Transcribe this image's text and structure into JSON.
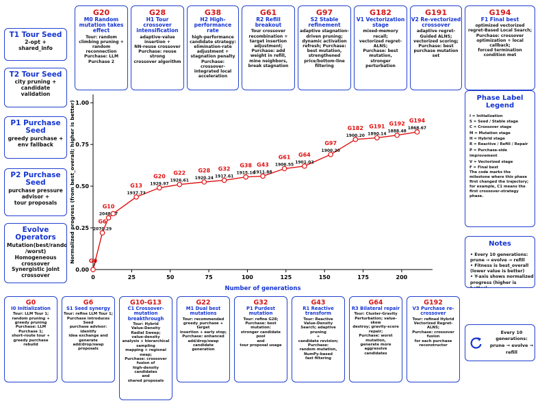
{
  "top_cards": [
    {
      "code": "G20",
      "title": "M0 Random mutation takes effect",
      "body": "Tour: random climbing pruning + random reconnection\nPurchase: LLM Purchase 2"
    },
    {
      "code": "G28",
      "title": "H1 Tour crossover intensification",
      "body": "adaptive-value insertion +\nNN-reuse crossover\nPurchase: reuse strong\ncrossover algorithm"
    },
    {
      "code": "G38",
      "title": "H2 High-performance rate",
      "body": "high-performance candidate strategy:\nelimination-rate adjustment + stagnation penalty\nPurchase: crossover-integrated local acceleration"
    },
    {
      "code": "G61",
      "title": "R2 Refill breakout",
      "body": "Tour crossover recombination + target insertion adjustment;\nPurchase: add weight in refill,\nmine neighbors, break stagnation"
    },
    {
      "code": "G97",
      "title": "S2 Stable refinement",
      "body": "adaptive stagnation-driven pruning; dynamic activation refresh; Purchase: best mutation, strengthened price/bottom-line filtering"
    },
    {
      "code": "G182",
      "title": "V1 Vectorization stage",
      "body": "mixed-memory recall;\nvectorized regret-ALNS;\nPurchase: best mutation,\nstronger perturbation"
    },
    {
      "code": "G191",
      "title": "V2 Re-vectorized crossover",
      "body": "adaptive regret-Guided ALNS;\nvectorized scoring;\nPurchase: best purchase mutation set"
    },
    {
      "code": "G194",
      "title": "F1 Final best",
      "body": "optimized vectorized regret-Based Local Search;\nPurchase: crossover optimization + local callback;\nforced termination condition met"
    }
  ],
  "left_cards": [
    {
      "title": "T1 Tour Seed",
      "body": "2-opt + shared_info"
    },
    {
      "title": "T2 Tour Seed",
      "body": "city pruning +\ncandidate validation"
    },
    {
      "title": "P1 Purchase Seed",
      "body": "greedy purchase +\nenv fallback"
    },
    {
      "title": "P2 Purchase Seed",
      "body": "purchase pressure advisor +\ntour proposals"
    },
    {
      "title": "Evolve Operators",
      "body": "Mutation(best/random\n/worst)\nHomogeneous crossover\nSynergistic joint crossover"
    }
  ],
  "bottom_cards": [
    {
      "code": "G0",
      "title": "I0 Initialization",
      "body": "Tour: LLM Tour 1;\nrandom pruning +\ngreedy pruning\nPurchase: LLM Purchase 1;\nshort-route tour +\ngreedy purchase rebuild"
    },
    {
      "code": "G6",
      "title": "S1 Seed synergy",
      "body": "Tour: refine LLM Tour 1;\nPurchase introduces\nSeed\npurchase advisor:\nidentify\nidea exchange and\ngenerate\nadd/drop/swap proposals"
    },
    {
      "code": "G10-G13",
      "title": "C1 Crossover-mutation breakthrough",
      "body": "Tour: Hybrid\nValue-Density\nRadial Sweep;\nvalue-density\nanalysis + hierarchical\nsampling\nmapping + regional\nswap;\nPurchase: crossover\nfusion of\nhigh-density candidates\nand\nshared proposals"
    },
    {
      "code": "G22",
      "title": "M1 Dual best mutations",
      "body": "Tour: recommended\ngreedy_purchase +\ntarget\ninsertion + early stop;\nPurchase: enhanced\nadd/drop/swap candidate\ngeneration"
    },
    {
      "code": "G32",
      "title": "P1 Purdest mutation",
      "body": "Tour: refine G28;\nPurchase: best mutation:\nstronger candidate pool\nand\ntour proposal usage"
    },
    {
      "code": "G43",
      "title": "R1 Reactive transform",
      "body": "Tour: Reactive\nValue-Density\nSearch; adaptive pruning\n+\ncandidate revision;\nPurchase:\nrandom mutation,\nNumPy-based\nfast filtering"
    },
    {
      "code": "G64",
      "title": "R3 Bilateral repair",
      "body": "Tour: Cluster-Gravity\nPerturbation; value-skew\ndestroy; gravity-score\nrepair;\nPurchase: worst\nmutation,\ngenerate more\naggressive\ncandidates"
    },
    {
      "code": "G192",
      "title": "V3 Purchase re-crossover",
      "body": "Tour: refined Hybrid\nVectorized Regret-ALNS;\nPurchase: crossover\nfusion\nfor each purchase\nreconstructor"
    }
  ],
  "legend": {
    "title": "Phase Label Legend",
    "lines": [
      "I = Initialization",
      "S = Seed / Stable stage",
      "C = Crossover stage",
      "M = Mutation stage",
      "H = Hybrid stage",
      "R = Reactive / Refill / Repair",
      "P = Purchase-side improvement",
      "V = Vectorized stage",
      "F = Final best",
      "The code marks the milestone where this phase first changed the trajectory; for example, C1 means the first crossover-strategy phase."
    ]
  },
  "notes": {
    "title": "Notes",
    "lines": [
      "• Every 10 generations: prune → evolve → refill",
      "• Fitness is best_overall (lower value is better)",
      "• Y-axis shows normalized progress (higher is better)"
    ]
  },
  "cycle": {
    "icon": "cycle-arrow-icon",
    "line1": "Every 10 generations:",
    "line2": "prune → evolve → refill"
  },
  "chart_data": {
    "type": "line",
    "xlabel": "Number of generations",
    "ylabel": "Normalized progress (from best_overall; higher is better)",
    "xlim": [
      0,
      220
    ],
    "ylim": [
      0,
      1.05
    ],
    "xticks": [
      0,
      25,
      50,
      75,
      100,
      125,
      150,
      175,
      200
    ],
    "yticks": [
      0.0,
      0.25,
      0.5,
      0.75,
      1.0
    ],
    "grid": false,
    "color": "#e01010",
    "points": [
      {
        "x": 0,
        "y": 0.0,
        "label": "G0",
        "value": ""
      },
      {
        "x": 6,
        "y": 0.22,
        "label": "G6",
        "value": "2070.29"
      },
      {
        "x": 10,
        "y": 0.31,
        "label": "G10",
        "value": "2048.37"
      },
      {
        "x": 13,
        "y": 0.335,
        "label": "",
        "value": ""
      },
      {
        "x": 28,
        "y": 0.435,
        "label": "G13",
        "value": "1937.73"
      },
      {
        "x": 43,
        "y": 0.49,
        "label": "G20",
        "value": "1929.97"
      },
      {
        "x": 56,
        "y": 0.51,
        "label": "G22",
        "value": "1926.61"
      },
      {
        "x": 72,
        "y": 0.525,
        "label": "G28",
        "value": "1920.24"
      },
      {
        "x": 85,
        "y": 0.535,
        "label": "G32",
        "value": "1917.61"
      },
      {
        "x": 99,
        "y": 0.555,
        "label": "G38",
        "value": "1915.16"
      },
      {
        "x": 110,
        "y": 0.56,
        "label": "G43",
        "value": "1911.88"
      },
      {
        "x": 124,
        "y": 0.605,
        "label": "G61",
        "value": "1906.55"
      },
      {
        "x": 137,
        "y": 0.62,
        "label": "G64",
        "value": "1901.02"
      },
      {
        "x": 154,
        "y": 0.69,
        "label": "G97",
        "value": "1900.20"
      },
      {
        "x": 170,
        "y": 0.78,
        "label": "G182",
        "value": "1900.20"
      },
      {
        "x": 184,
        "y": 0.79,
        "label": "G191",
        "value": "1890.14"
      },
      {
        "x": 197,
        "y": 0.805,
        "label": "G192",
        "value": "1888.48"
      },
      {
        "x": 210,
        "y": 0.825,
        "label": "G194",
        "value": "1868.67"
      }
    ]
  }
}
